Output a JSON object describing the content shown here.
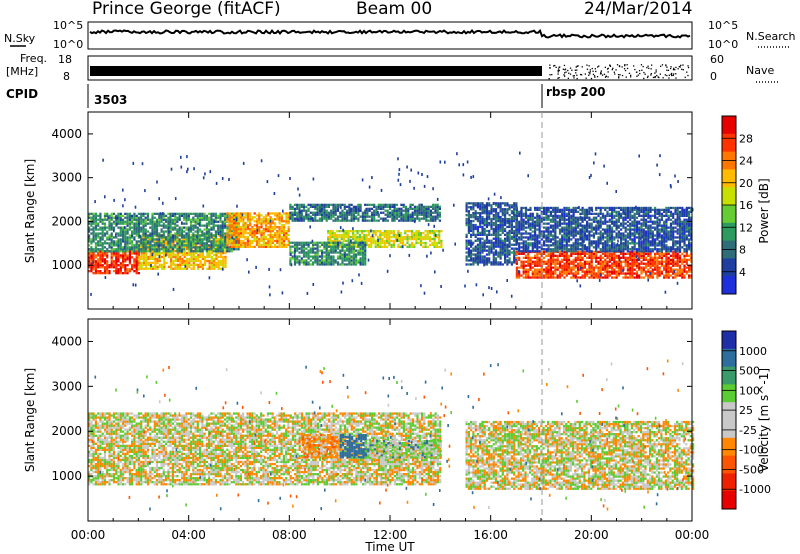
{
  "header": {
    "station": "Prince George (fitACF)",
    "beam": "Beam 00",
    "date": "24/Mar/2014"
  },
  "status_panels": {
    "sky_label": "N.Sky",
    "search_label": "N.Search",
    "sky_ticks": [
      "10^5",
      "10^0"
    ],
    "search_ticks": [
      "10^5",
      "10^0"
    ],
    "freq_label_1": "Freq.",
    "freq_label_2": "[MHz]",
    "freq_ticks": [
      "18",
      "8"
    ],
    "nave_label": "Nave",
    "nave_ticks": [
      "60",
      "0"
    ],
    "cpid_label": "CPID",
    "cpid_1": "3503",
    "cpid_2": "rbsp 200"
  },
  "chart_data": [
    {
      "type": "heatmap",
      "title": "",
      "xlabel": "",
      "ylabel": "Slant Range [km]",
      "colorbar_label": "Power [dB]",
      "colorbar_ticks": [
        "28",
        "24",
        "20",
        "16",
        "12",
        "8",
        "4"
      ],
      "colorbar_colors": [
        "#e60000",
        "#ff3300",
        "#ff7700",
        "#ffbb00",
        "#c8e000",
        "#66cc33",
        "#2e9b5e",
        "#2f6e78",
        "#1f3fa0",
        "#1e2fdc"
      ],
      "yticks": [
        "4000",
        "3000",
        "2000",
        "1000"
      ],
      "ylim": [
        0,
        4500
      ],
      "xlim": [
        "00:00",
        "24:00"
      ],
      "regions": [
        {
          "start_h": 0.0,
          "end_h": 2.0,
          "range_km": [
            800,
            1300
          ],
          "dB": 28
        },
        {
          "start_h": 2.0,
          "end_h": 5.5,
          "range_km": [
            900,
            1700
          ],
          "dB": 20
        },
        {
          "start_h": 0.0,
          "end_h": 6.0,
          "range_km": [
            1300,
            2200
          ],
          "dB": 10
        },
        {
          "start_h": 5.5,
          "end_h": 8.0,
          "range_km": [
            1400,
            2200
          ],
          "dB": 22
        },
        {
          "start_h": 8.0,
          "end_h": 14.0,
          "range_km": [
            2000,
            2400
          ],
          "dB": 8
        },
        {
          "start_h": 9.5,
          "end_h": 14.0,
          "range_km": [
            1400,
            1800
          ],
          "dB": 18
        },
        {
          "start_h": 8.0,
          "end_h": 11.0,
          "range_km": [
            1000,
            1500
          ],
          "dB": 10
        },
        {
          "start_h": 15.0,
          "end_h": 17.0,
          "range_km": [
            1000,
            2400
          ],
          "dB": 6
        },
        {
          "start_h": 17.0,
          "end_h": 24.0,
          "range_km": [
            700,
            1300
          ],
          "dB": 27
        },
        {
          "start_h": 17.0,
          "end_h": 24.0,
          "range_km": [
            1300,
            2300
          ],
          "dB": 6
        }
      ]
    },
    {
      "type": "heatmap",
      "title": "",
      "xlabel": "Time UT",
      "ylabel": "Slant Range [km]",
      "colorbar_label": "Velocity [m s^-1]",
      "colorbar_ticks": [
        "1000",
        "500",
        "100",
        "25",
        "-25",
        "-100",
        "-500",
        "-1000"
      ],
      "colorbar_colors": [
        "#1e2fa8",
        "#2e6e9e",
        "#3a9a6a",
        "#5ccc33",
        "#c8c8c8",
        "#c8c8c8",
        "#ff8800",
        "#ff5500",
        "#ee2200",
        "#e60000"
      ],
      "yticks": [
        "4000",
        "3000",
        "2000",
        "1000"
      ],
      "xticks": [
        "00:00",
        "04:00",
        "08:00",
        "12:00",
        "16:00",
        "20:00",
        "00:00"
      ],
      "ylim": [
        0,
        4500
      ],
      "xlim": [
        "00:00",
        "24:00"
      ],
      "regions": [
        {
          "start_h": 0.0,
          "end_h": 14.0,
          "range_km": [
            800,
            2400
          ],
          "ms": 0
        },
        {
          "start_h": 8.5,
          "end_h": 10.0,
          "range_km": [
            1400,
            1900
          ],
          "ms": -150
        },
        {
          "start_h": 10.0,
          "end_h": 11.0,
          "range_km": [
            1400,
            1900
          ],
          "ms": 400
        },
        {
          "start_h": 11.0,
          "end_h": 14.0,
          "range_km": [
            1400,
            1800
          ],
          "ms": 80
        },
        {
          "start_h": 15.0,
          "end_h": 24.0,
          "range_km": [
            700,
            2200
          ],
          "ms": 0
        }
      ]
    }
  ]
}
